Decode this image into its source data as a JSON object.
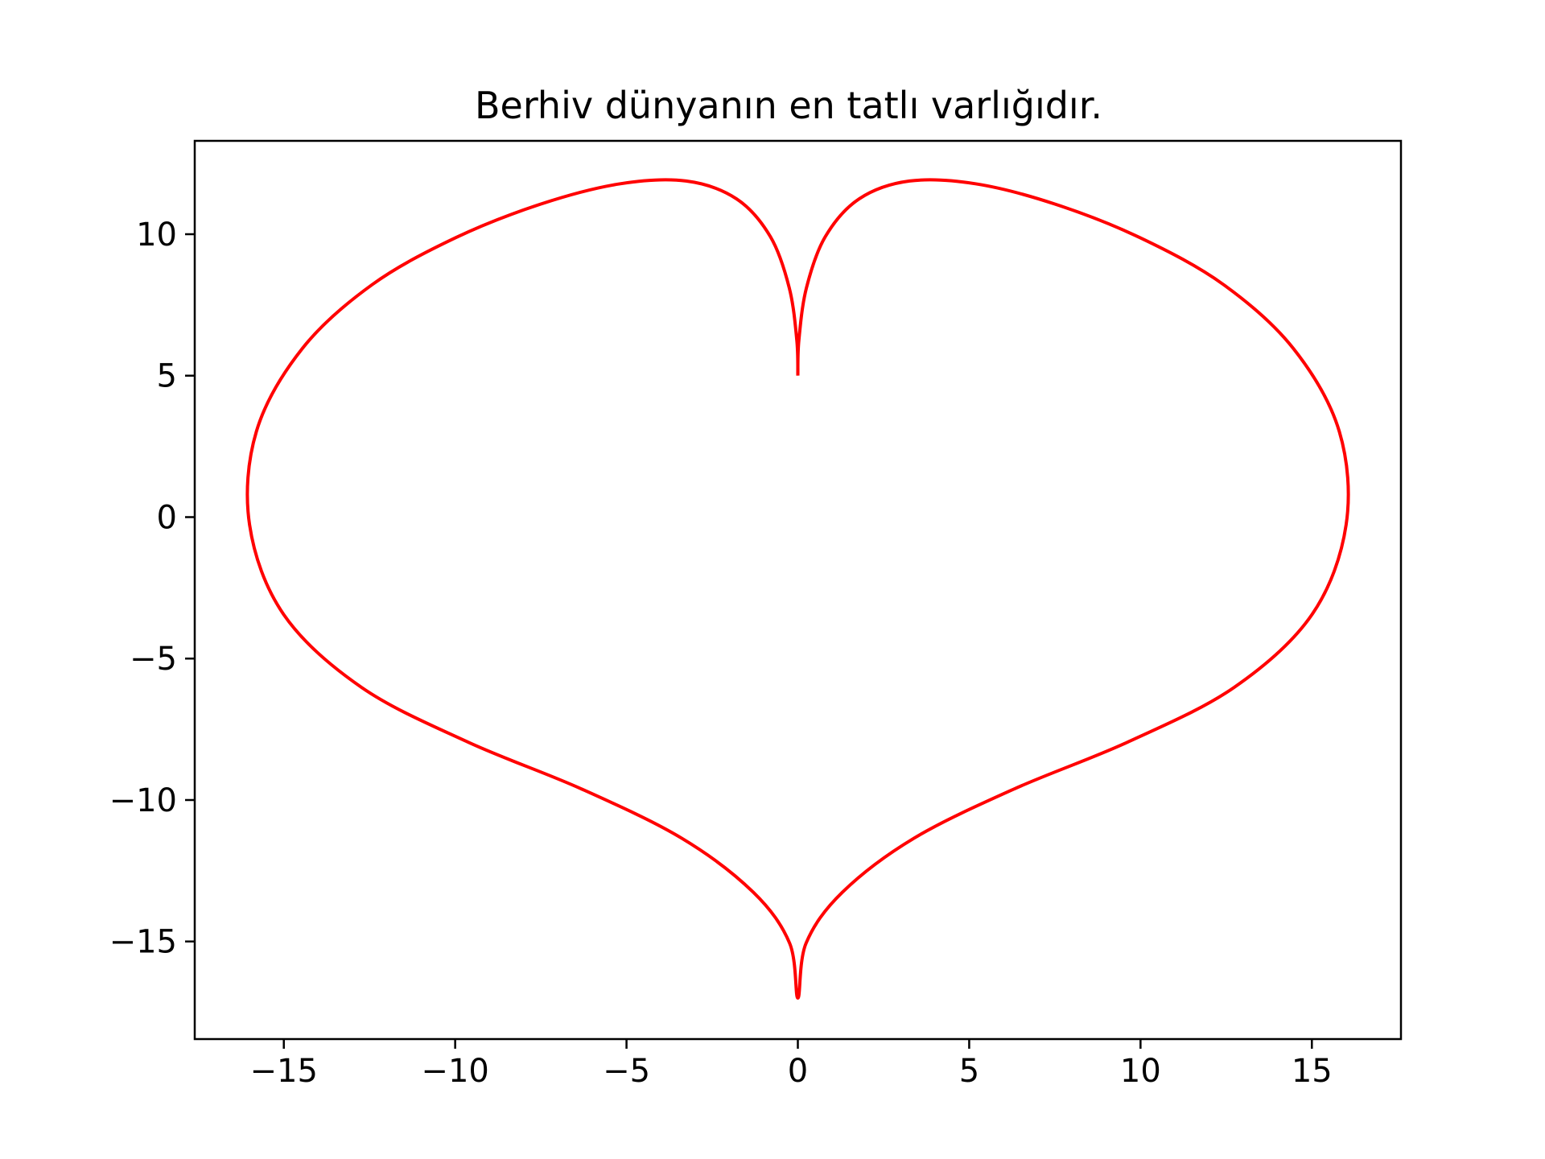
{
  "chart_data": {
    "type": "line",
    "title": "Berhiv dünyanın en tatlı varlığıdır.",
    "xlabel": "",
    "ylabel": "",
    "xlim": [
      -17.6,
      17.6
    ],
    "ylim": [
      -18.45,
      13.3
    ],
    "xticks": [
      -15,
      -10,
      -5,
      0,
      5,
      10,
      15
    ],
    "yticks": [
      -15,
      -10,
      -5,
      0,
      5,
      10
    ],
    "xtick_labels": [
      "−15",
      "−10",
      "−5",
      "0",
      "5",
      "10",
      "15"
    ],
    "ytick_labels": [
      "−15",
      "−10",
      "−5",
      "0",
      "5",
      "10"
    ],
    "grid": false,
    "legend": "none",
    "series": [
      {
        "color": "#ff0000",
        "x": [
          0.0,
          0.03,
          0.25,
          0.8,
          1.79,
          3.26,
          5.2,
          7.49,
          9.98,
          12.42,
          14.46,
          15.8,
          16.0,
          15.0,
          12.73,
          9.63,
          6.33,
          3.39,
          1.3,
          0.24,
          0.0,
          -0.24,
          -1.3,
          -3.39,
          -6.33,
          -9.63,
          -12.73,
          -15.0,
          -16.0,
          -15.8,
          -14.46,
          -12.42,
          -9.98,
          -7.49,
          -5.2,
          -3.26,
          -1.79,
          -0.8,
          -0.25,
          -0.03,
          0.0
        ],
        "y": [
          5.0,
          6.25,
          8.1,
          9.91,
          11.25,
          11.88,
          11.78,
          11.07,
          9.88,
          8.22,
          5.96,
          3.03,
          -0.27,
          -3.45,
          -6.02,
          -7.95,
          -9.6,
          -11.35,
          -13.26,
          -15.06,
          -17.0,
          -15.06,
          -13.26,
          -11.35,
          -9.6,
          -7.95,
          -6.02,
          -3.45,
          -0.27,
          3.03,
          5.96,
          8.22,
          9.88,
          11.07,
          11.78,
          11.88,
          11.25,
          9.91,
          8.1,
          6.25,
          5.0
        ]
      }
    ]
  }
}
